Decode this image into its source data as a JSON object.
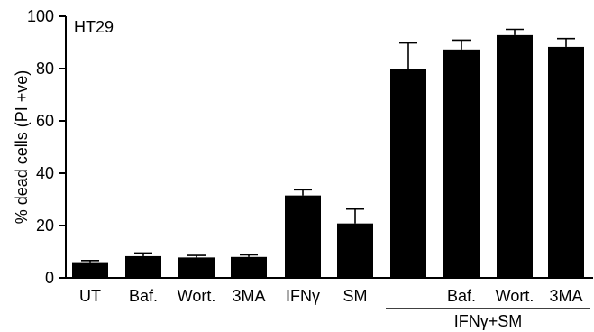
{
  "chart_data": {
    "type": "bar",
    "annotation": "HT29",
    "ylabel": "% dead cells (PI +ve)",
    "xlabel": "",
    "ylim": [
      0,
      100
    ],
    "yticks": [
      0,
      20,
      40,
      60,
      80,
      100
    ],
    "grid": false,
    "categories": [
      "UT",
      "Baf.",
      "Wort.",
      "3MA",
      "IFNγ",
      "SM",
      "",
      "Baf.",
      "Wort.",
      "3MA"
    ],
    "values": [
      6,
      8.3,
      7.8,
      8,
      31.5,
      20.8,
      79.8,
      87.3,
      92.8,
      88.3
    ],
    "errors": [
      0.6,
      1.2,
      0.8,
      0.8,
      2.2,
      5.5,
      10,
      3.6,
      2.2,
      3.2
    ],
    "group_label": "IFNγ+SM",
    "group_indices": [
      6,
      7,
      8,
      9
    ],
    "color": "#000000"
  }
}
